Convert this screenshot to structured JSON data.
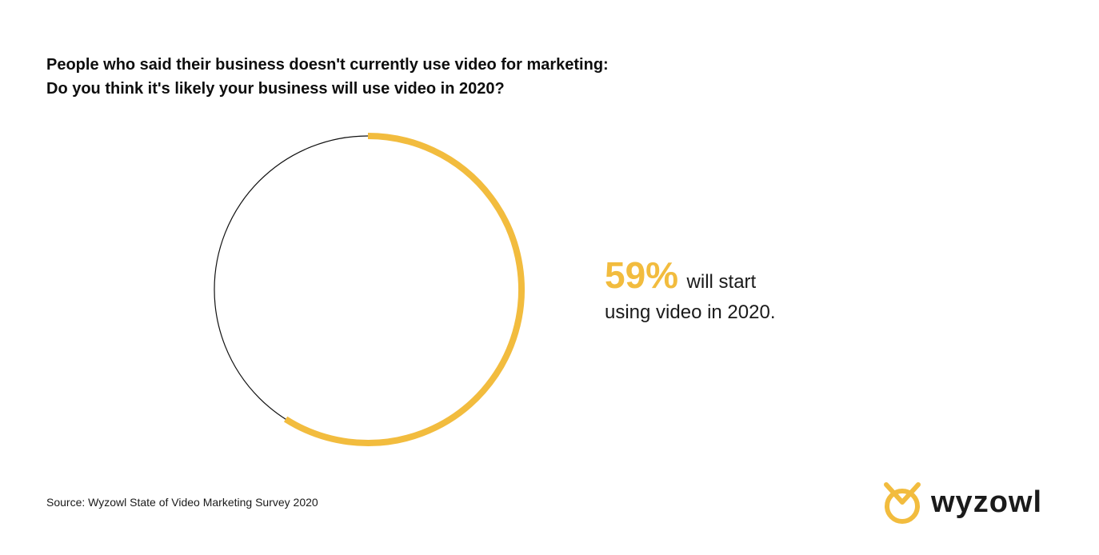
{
  "colors": {
    "accent": "#f2bc3e",
    "track": "#111111"
  },
  "title": {
    "line1": "People who said their business doesn't currently use video for marketing:",
    "line2": "Do you think it's likely your business will use video in 2020?"
  },
  "stat": {
    "value_label": "59%",
    "text_line1": "will start",
    "text_line2": "using video in 2020."
  },
  "source": "Source: Wyzowl State of Video Marketing Survey 2020",
  "logo": {
    "text": "wyzowl",
    "icon": "wyzowl-owl-icon"
  },
  "chart_data": {
    "type": "pie",
    "style": "donut-ring",
    "categories": [
      "will start using video in 2020"
    ],
    "values": [
      59
    ],
    "total": 100,
    "unit": "%"
  }
}
